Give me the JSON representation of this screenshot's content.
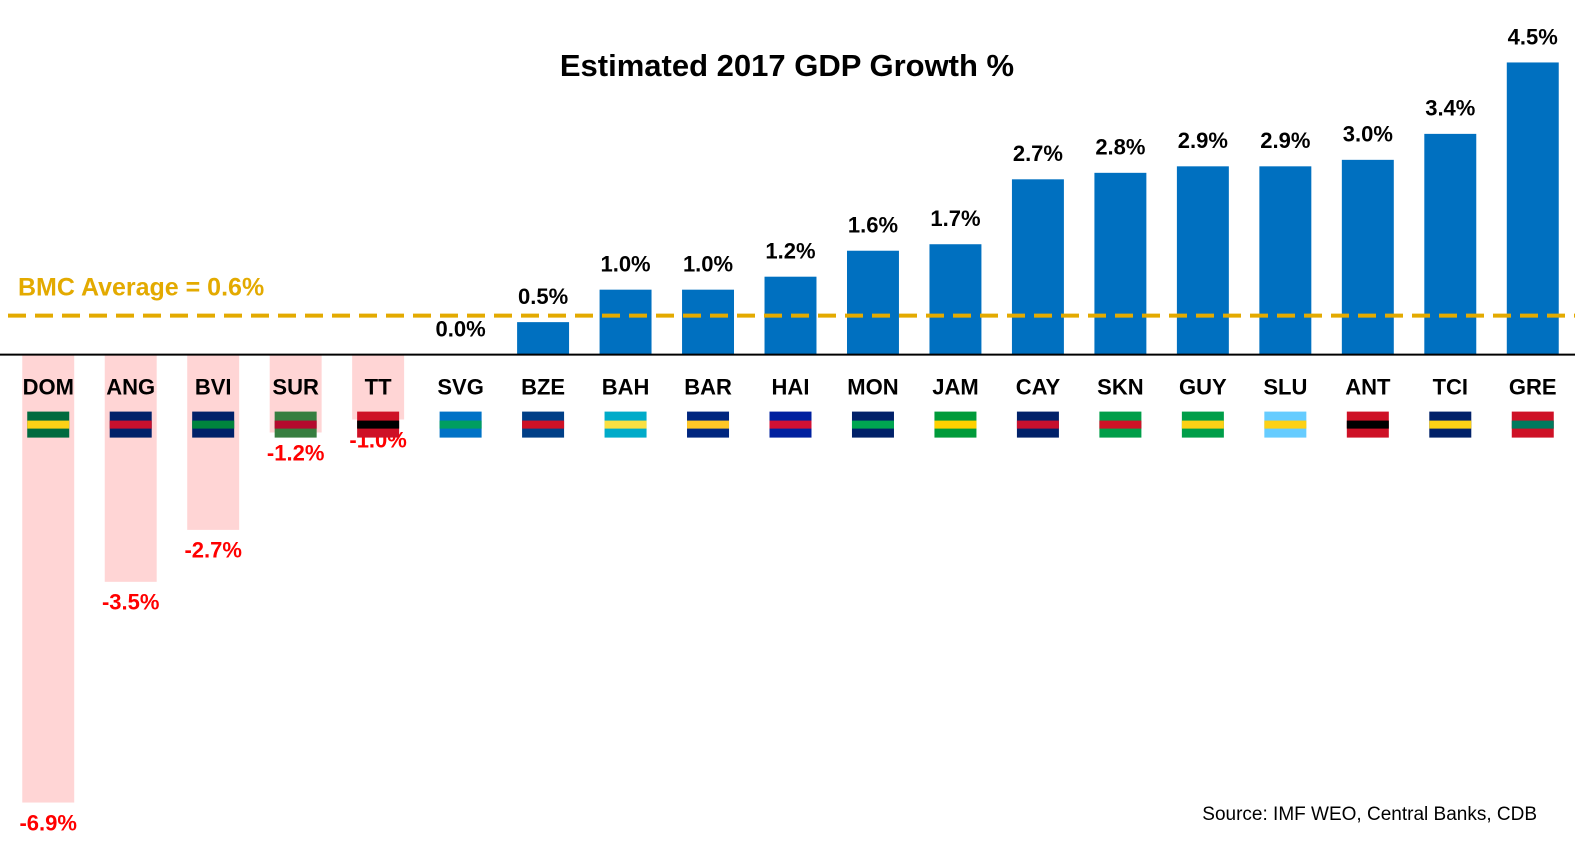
{
  "chart_data": {
    "type": "bar",
    "title": "Estimated 2017 GDP Growth %",
    "categories": [
      "DOM",
      "ANG",
      "BVI",
      "SUR",
      "TT",
      "SVG",
      "BZE",
      "BAH",
      "BAR",
      "HAI",
      "MON",
      "JAM",
      "CAY",
      "SKN",
      "GUY",
      "SLU",
      "ANT",
      "TCI",
      "GRE"
    ],
    "values": [
      -6.9,
      -3.5,
      -2.7,
      -1.2,
      -1.0,
      0.0,
      0.5,
      1.0,
      1.0,
      1.2,
      1.6,
      1.7,
      2.7,
      2.8,
      2.9,
      2.9,
      3.0,
      3.4,
      4.5
    ],
    "value_labels": [
      "-6.9%",
      "-3.5%",
      "-2.7%",
      "-1.2%",
      "-1.0%",
      "0.0%",
      "0.5%",
      "1.0%",
      "1.0%",
      "1.2%",
      "1.6%",
      "1.7%",
      "2.7%",
      "2.8%",
      "2.9%",
      "2.9%",
      "3.0%",
      "3.4%",
      "4.5%"
    ],
    "color": "#0070c0",
    "negative_color": "#ffd5d5",
    "ylim": [
      -7.4,
      5.0
    ],
    "reference_line": {
      "value": 0.6,
      "label": "BMC Average = 0.6%",
      "color": "#e3aa00"
    },
    "source": "Source: IMF WEO, Central Banks, CDB"
  }
}
